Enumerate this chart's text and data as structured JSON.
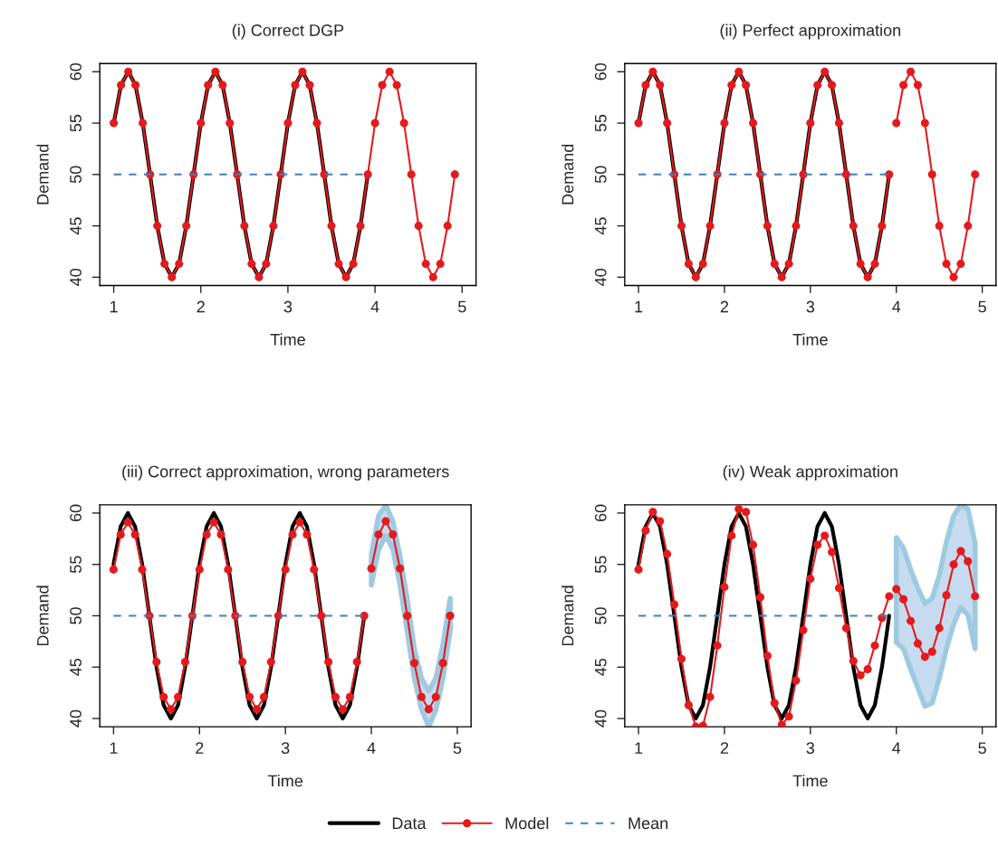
{
  "chart_data": [
    {
      "type": "line",
      "title": "(i) Correct DGP",
      "xlabel": "Time",
      "ylabel": "Demand",
      "xlim": [
        0.84,
        5.16
      ],
      "ylim": [
        39.2,
        60.8
      ],
      "xticks": [
        1,
        2,
        3,
        4,
        5
      ],
      "yticks": [
        40,
        45,
        50,
        55,
        60
      ],
      "grid": false,
      "series": [
        {
          "color": "#000000",
          "marker": "none",
          "line_style": "solid",
          "x": [
            1,
            1.083,
            1.167,
            1.25,
            1.333,
            1.417,
            1.5,
            1.583,
            1.667,
            1.75,
            1.833,
            1.917,
            2,
            2.083,
            2.167,
            2.25,
            2.333,
            2.417,
            2.5,
            2.583,
            2.667,
            2.75,
            2.833,
            2.917,
            3,
            3.083,
            3.167,
            3.25,
            3.333,
            3.417,
            3.5,
            3.583,
            3.667,
            3.75,
            3.833,
            3.917
          ],
          "values": [
            55,
            58.7,
            60,
            58.7,
            55,
            50,
            45,
            41.3,
            40,
            41.3,
            45,
            50,
            55,
            58.7,
            60,
            58.7,
            55,
            50,
            45,
            41.3,
            40,
            41.3,
            45,
            50,
            55,
            58.7,
            60,
            58.7,
            55,
            50,
            45,
            41.3,
            40,
            41.3,
            45,
            50
          ]
        },
        {
          "color": "#e41a1c",
          "marker": "circle",
          "line_style": "solid",
          "x": [
            1,
            1.083,
            1.167,
            1.25,
            1.333,
            1.417,
            1.5,
            1.583,
            1.667,
            1.75,
            1.833,
            1.917,
            2,
            2.083,
            2.167,
            2.25,
            2.333,
            2.417,
            2.5,
            2.583,
            2.667,
            2.75,
            2.833,
            2.917,
            3,
            3.083,
            3.167,
            3.25,
            3.333,
            3.417,
            3.5,
            3.583,
            3.667,
            3.75,
            3.833,
            3.917,
            4,
            4.083,
            4.167,
            4.25,
            4.333,
            4.417,
            4.5,
            4.583,
            4.667,
            4.75,
            4.833,
            4.917
          ],
          "values": [
            55,
            58.7,
            60,
            58.7,
            55,
            50,
            45,
            41.3,
            40,
            41.3,
            45,
            50,
            55,
            58.7,
            60,
            58.7,
            55,
            50,
            45,
            41.3,
            40,
            41.3,
            45,
            50,
            55,
            58.7,
            60,
            58.7,
            55,
            50,
            45,
            41.3,
            40,
            41.3,
            45,
            50,
            55,
            58.7,
            60,
            58.7,
            55,
            50,
            45,
            41.3,
            40,
            41.3,
            45,
            50
          ]
        },
        {
          "color": "#3f7fbf",
          "marker": "none",
          "line_style": "dashed",
          "x": [
            1,
            3.917
          ],
          "values": [
            50,
            50
          ]
        }
      ]
    },
    {
      "type": "line",
      "title": "(ii) Perfect approximation",
      "xlabel": "Time",
      "ylabel": "Demand",
      "xlim": [
        0.84,
        5.16
      ],
      "ylim": [
        39.2,
        60.8
      ],
      "xticks": [
        1,
        2,
        3,
        4,
        5
      ],
      "yticks": [
        40,
        45,
        50,
        55,
        60
      ],
      "grid": false,
      "series": [
        {
          "color": "#000000",
          "marker": "none",
          "line_style": "solid",
          "x": [
            1,
            1.083,
            1.167,
            1.25,
            1.333,
            1.417,
            1.5,
            1.583,
            1.667,
            1.75,
            1.833,
            1.917,
            2,
            2.083,
            2.167,
            2.25,
            2.333,
            2.417,
            2.5,
            2.583,
            2.667,
            2.75,
            2.833,
            2.917,
            3,
            3.083,
            3.167,
            3.25,
            3.333,
            3.417,
            3.5,
            3.583,
            3.667,
            3.75,
            3.833,
            3.917
          ],
          "values": [
            55,
            58.7,
            60,
            58.7,
            55,
            50,
            45,
            41.3,
            40,
            41.3,
            45,
            50,
            55,
            58.7,
            60,
            58.7,
            55,
            50,
            45,
            41.3,
            40,
            41.3,
            45,
            50,
            55,
            58.7,
            60,
            58.7,
            55,
            50,
            45,
            41.3,
            40,
            41.3,
            45,
            50
          ]
        },
        {
          "color": "#e41a1c",
          "marker": "circle",
          "line_style": "solid",
          "x": [
            1,
            1.083,
            1.167,
            1.25,
            1.333,
            1.417,
            1.5,
            1.583,
            1.667,
            1.75,
            1.833,
            1.917,
            2,
            2.083,
            2.167,
            2.25,
            2.333,
            2.417,
            2.5,
            2.583,
            2.667,
            2.75,
            2.833,
            2.917,
            3,
            3.083,
            3.167,
            3.25,
            3.333,
            3.417,
            3.5,
            3.583,
            3.667,
            3.75,
            3.833,
            3.917
          ],
          "values": [
            55,
            58.7,
            60,
            58.7,
            55,
            50,
            45,
            41.3,
            40,
            41.3,
            45,
            50,
            55,
            58.7,
            60,
            58.7,
            55,
            50,
            45,
            41.3,
            40,
            41.3,
            45,
            50,
            55,
            58.7,
            60,
            58.7,
            55,
            50,
            45,
            41.3,
            40,
            41.3,
            45,
            50
          ]
        },
        {
          "color": "#e41a1c",
          "marker": "circle",
          "line_style": "solid",
          "x": [
            4,
            4.083,
            4.167,
            4.25,
            4.333,
            4.417,
            4.5,
            4.583,
            4.667,
            4.75,
            4.833,
            4.917
          ],
          "values": [
            55,
            58.7,
            60,
            58.7,
            55,
            50,
            45,
            41.3,
            40,
            41.3,
            45,
            50
          ]
        },
        {
          "color": "#3f7fbf",
          "marker": "none",
          "line_style": "dashed",
          "x": [
            1,
            3.917
          ],
          "values": [
            50,
            50
          ]
        }
      ]
    },
    {
      "type": "line",
      "title": "(iii) Correct approximation, wrong parameters",
      "xlabel": "Time",
      "ylabel": "Demand",
      "xlim": [
        0.84,
        5.16
      ],
      "ylim": [
        39.2,
        60.8
      ],
      "xticks": [
        1,
        2,
        3,
        4,
        5
      ],
      "yticks": [
        40,
        45,
        50,
        55,
        60
      ],
      "grid": false,
      "series": [
        {
          "color": "#000000",
          "marker": "none",
          "line_style": "solid",
          "x": [
            1,
            1.083,
            1.167,
            1.25,
            1.333,
            1.417,
            1.5,
            1.583,
            1.667,
            1.75,
            1.833,
            1.917,
            2,
            2.083,
            2.167,
            2.25,
            2.333,
            2.417,
            2.5,
            2.583,
            2.667,
            2.75,
            2.833,
            2.917,
            3,
            3.083,
            3.167,
            3.25,
            3.333,
            3.417,
            3.5,
            3.583,
            3.667,
            3.75,
            3.833,
            3.917
          ],
          "values": [
            55,
            58.7,
            60,
            58.7,
            55,
            50,
            45,
            41.3,
            40,
            41.3,
            45,
            50,
            55,
            58.7,
            60,
            58.7,
            55,
            50,
            45,
            41.3,
            40,
            41.3,
            45,
            50,
            55,
            58.7,
            60,
            58.7,
            55,
            50,
            45,
            41.3,
            40,
            41.3,
            45,
            50
          ]
        },
        {
          "color": "#e41a1c",
          "marker": "circle",
          "line_style": "solid",
          "x": [
            1,
            1.083,
            1.167,
            1.25,
            1.333,
            1.417,
            1.5,
            1.583,
            1.667,
            1.75,
            1.833,
            1.917,
            2,
            2.083,
            2.167,
            2.25,
            2.333,
            2.417,
            2.5,
            2.583,
            2.667,
            2.75,
            2.833,
            2.917,
            3,
            3.083,
            3.167,
            3.25,
            3.333,
            3.417,
            3.5,
            3.583,
            3.667,
            3.75,
            3.833,
            3.917
          ],
          "values": [
            54.5,
            57.9,
            59.1,
            57.9,
            54.5,
            50,
            45.5,
            42.1,
            40.9,
            42.1,
            45.5,
            50,
            54.5,
            57.9,
            59.1,
            57.9,
            54.5,
            50,
            45.5,
            42.1,
            40.9,
            42.1,
            45.5,
            50,
            54.5,
            57.9,
            59.1,
            57.9,
            54.5,
            50,
            45.5,
            42.1,
            40.9,
            42.1,
            45.5,
            50
          ]
        },
        {
          "color": "#e41a1c",
          "marker": "circle",
          "line_style": "solid",
          "x": [
            4,
            4.083,
            4.167,
            4.25,
            4.333,
            4.417,
            4.5,
            4.583,
            4.667,
            4.75,
            4.833,
            4.917
          ],
          "values": [
            54.6,
            57.9,
            59.2,
            57.9,
            54.6,
            50,
            45.4,
            42.1,
            40.9,
            42.1,
            45.4,
            50
          ],
          "lower": [
            53,
            56.4,
            57.8,
            56.5,
            53,
            48.5,
            43.9,
            40.9,
            39.2,
            40.8,
            43.9,
            48.5
          ],
          "upper": [
            56,
            59.7,
            60.8,
            59.2,
            55.8,
            51.6,
            46.8,
            43.9,
            42.7,
            43.9,
            47.2,
            51.7
          ]
        },
        {
          "color": "#3f7fbf",
          "marker": "none",
          "line_style": "dashed",
          "x": [
            1,
            3.917
          ],
          "values": [
            50,
            50
          ]
        }
      ]
    },
    {
      "type": "line",
      "title": "(iv) Weak approximation",
      "xlabel": "Time",
      "ylabel": "Demand",
      "xlim": [
        0.84,
        5.16
      ],
      "ylim": [
        39.2,
        60.8
      ],
      "xticks": [
        1,
        2,
        3,
        4,
        5
      ],
      "yticks": [
        40,
        45,
        50,
        55,
        60
      ],
      "grid": false,
      "legend": "bottom",
      "series": [
        {
          "name": "Data",
          "color": "#000000",
          "marker": "none",
          "line_style": "solid",
          "x": [
            1,
            1.083,
            1.167,
            1.25,
            1.333,
            1.417,
            1.5,
            1.583,
            1.667,
            1.75,
            1.833,
            1.917,
            2,
            2.083,
            2.167,
            2.25,
            2.333,
            2.417,
            2.5,
            2.583,
            2.667,
            2.75,
            2.833,
            2.917,
            3,
            3.083,
            3.167,
            3.25,
            3.333,
            3.417,
            3.5,
            3.583,
            3.667,
            3.75,
            3.833,
            3.917
          ],
          "values": [
            55,
            58.7,
            60,
            58.7,
            55,
            50,
            45,
            41.3,
            40,
            41.3,
            45,
            50,
            55,
            58.7,
            60,
            58.7,
            55,
            50,
            45,
            41.3,
            40,
            41.3,
            45,
            50,
            55,
            58.7,
            60,
            58.7,
            55,
            50,
            45,
            41.3,
            40,
            41.3,
            45,
            50
          ]
        },
        {
          "name": "Model",
          "color": "#e41a1c",
          "marker": "circle",
          "line_style": "solid",
          "x": [
            1,
            1.083,
            1.167,
            1.25,
            1.333,
            1.417,
            1.5,
            1.583,
            1.667,
            1.75,
            1.833,
            1.917,
            2,
            2.083,
            2.167,
            2.25,
            2.333,
            2.417,
            2.5,
            2.583,
            2.667,
            2.75,
            2.833,
            2.917,
            3,
            3.083,
            3.167,
            3.25,
            3.333,
            3.417,
            3.5,
            3.583,
            3.667,
            3.75,
            3.833,
            3.917
          ],
          "values": [
            54.5,
            58.3,
            60.1,
            59.2,
            56,
            51.1,
            45.8,
            41.3,
            39.2,
            39.3,
            42.1,
            47.1,
            52.8,
            57.8,
            60.4,
            60.1,
            56.9,
            51.8,
            46.1,
            41.5,
            39.4,
            40.2,
            43.7,
            48.6,
            53.6,
            56.9,
            57.8,
            56.2,
            52.7,
            48.8,
            45.6,
            44.2,
            44.8,
            47.1,
            49.8,
            51.9
          ]
        },
        {
          "color": "#e41a1c",
          "marker": "circle",
          "line_style": "solid",
          "x": [
            4,
            4.083,
            4.167,
            4.25,
            4.333,
            4.417,
            4.5,
            4.583,
            4.667,
            4.75,
            4.833,
            4.917
          ],
          "values": [
            52.6,
            51.6,
            49.5,
            47.3,
            46,
            46.5,
            48.8,
            52,
            55,
            56.3,
            55.3,
            51.9
          ],
          "lower": [
            47.4,
            46.8,
            44.8,
            43,
            41.2,
            41.5,
            43.9,
            46.8,
            49.2,
            50.8,
            50.1,
            46.8
          ],
          "upper": [
            57.6,
            56.6,
            54.5,
            52.7,
            51.2,
            51.7,
            53.9,
            57.2,
            59.7,
            60.8,
            60.4,
            57
          ]
        },
        {
          "name": "Mean",
          "color": "#3f7fbf",
          "marker": "none",
          "line_style": "dashed",
          "x": [
            1,
            3.917
          ],
          "values": [
            50,
            50
          ]
        }
      ]
    }
  ]
}
